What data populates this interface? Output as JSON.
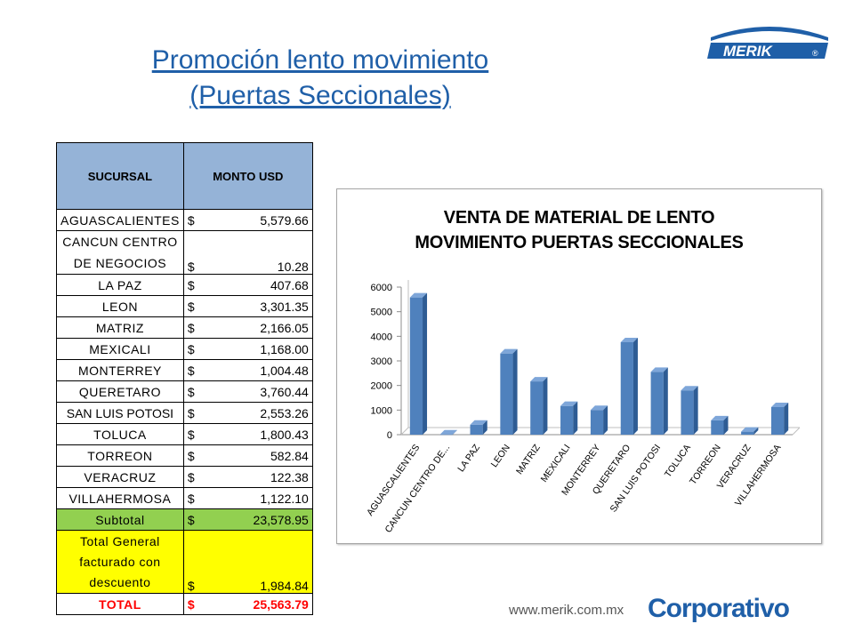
{
  "title": {
    "line1": "Promoción lento movimiento",
    "line2": "(Puertas Seccionales)"
  },
  "logo": {
    "text": "MERIK",
    "mark": "®"
  },
  "table": {
    "headers": [
      "SUCURSAL",
      "MONTO USD"
    ],
    "currency": "$",
    "rows": [
      {
        "name": "AGUASCALIENTES",
        "amount": "5,579.66"
      },
      {
        "name1": "CANCUN CENTRO",
        "name": "DE NEGOCIOS",
        "amount": "10.28"
      },
      {
        "name": "LA PAZ",
        "amount": "407.68"
      },
      {
        "name": "LEON",
        "amount": "3,301.35"
      },
      {
        "name": "MATRIZ",
        "amount": "2,166.05"
      },
      {
        "name": "MEXICALI",
        "amount": "1,168.00"
      },
      {
        "name": "MONTERREY",
        "amount": "1,004.48"
      },
      {
        "name": "QUERETARO",
        "amount": "3,760.44"
      },
      {
        "name": "SAN LUIS POTOSI",
        "amount": "2,553.26"
      },
      {
        "name": "TOLUCA",
        "amount": "1,800.43"
      },
      {
        "name": "TORREON",
        "amount": "582.84"
      },
      {
        "name": "VERACRUZ",
        "amount": "122.38"
      },
      {
        "name": "VILLAHERMOSA",
        "amount": "1,122.10"
      }
    ],
    "subtotal": {
      "label": "Subtotal",
      "amount": "23,578.95"
    },
    "total_general": {
      "line1": "Total General",
      "line2": "facturado con",
      "line3": "descuento",
      "amount": "1,984.84"
    },
    "total": {
      "label": "TOTAL",
      "amount": "25,563.79"
    }
  },
  "chart_data": {
    "type": "bar",
    "title": "VENTA DE MATERIAL DE LENTO MOVIMIENTO PUERTAS SECCIONALES",
    "title_line1": "VENTA DE MATERIAL DE LENTO",
    "title_line2": "MOVIMIENTO PUERTAS SECCIONALES",
    "categories": [
      "AGUASCALIENTES",
      "CANCUN CENTRO DE...",
      "LA PAZ",
      "LEON",
      "MATRIZ",
      "MEXICALI",
      "MONTERREY",
      "QUERETARO",
      "SAN LUIS POTOSI",
      "TOLUCA",
      "TORREON",
      "VERACRUZ",
      "VILLAHERMOSA"
    ],
    "values": [
      5579.66,
      10.28,
      407.68,
      3301.35,
      2166.05,
      1168.0,
      1004.48,
      3760.44,
      2553.26,
      1800.43,
      582.84,
      122.38,
      1122.1
    ],
    "yticks": [
      0,
      1000,
      2000,
      3000,
      4000,
      5000,
      6000
    ],
    "ylim": [
      0,
      6000
    ],
    "xlabel": "",
    "ylabel": "",
    "grid": false,
    "legend": "none",
    "bar_color": "#4F81BD"
  },
  "footer": {
    "url": "www.merik.com.mx",
    "brand": "Corporativo"
  }
}
